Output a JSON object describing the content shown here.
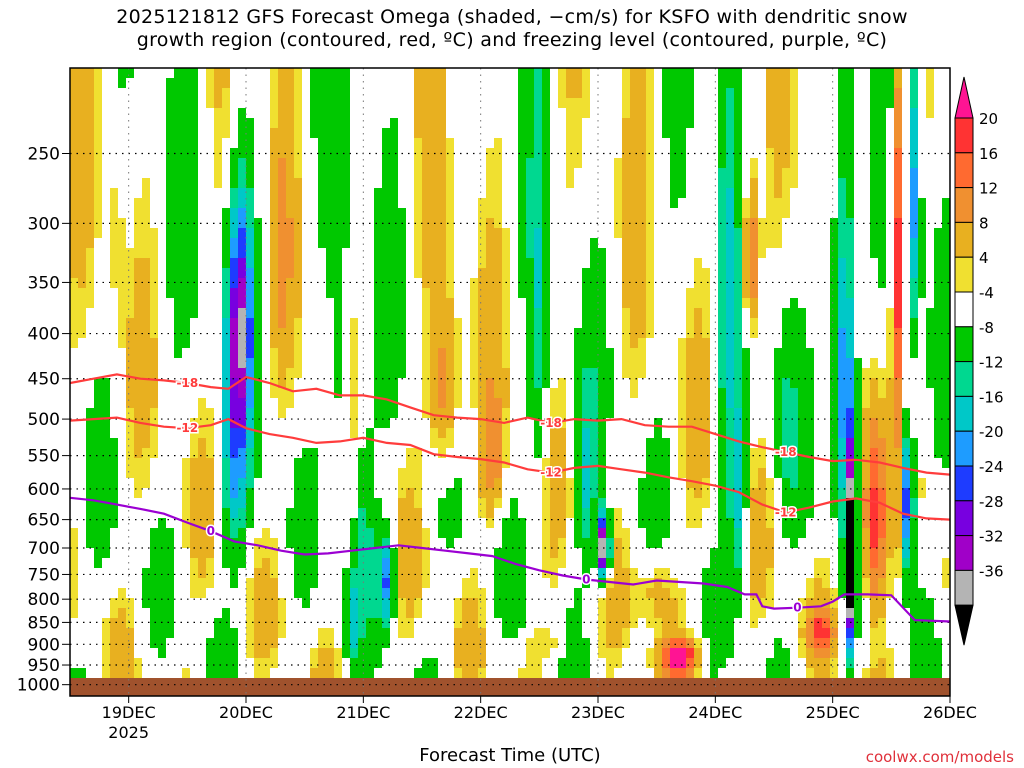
{
  "title_lines": [
    "2025121812 GFS Forecast Omega (shaded, −cm/s) for KSFO with dendritic snow",
    "growth region (contoured, red, ºC) and freezing level (contoured, purple, ºC)"
  ],
  "credit": "coolwx.com/models",
  "chart_data": {
    "type": "heatmap",
    "title": "2025121812 GFS Forecast Omega (shaded, −cm/s) for KSFO with dendritic snow growth region (contoured, red, ºC) and freezing level (contoured, purple, ºC)",
    "xlabel": "Forecast Time (UTC)",
    "ylabel": "",
    "x_ticks": [
      {
        "value": 19.0,
        "label": "19DEC",
        "sublabel": "2025"
      },
      {
        "value": 20.0,
        "label": "20DEC"
      },
      {
        "value": 21.0,
        "label": "21DEC"
      },
      {
        "value": 22.0,
        "label": "22DEC"
      },
      {
        "value": 23.0,
        "label": "23DEC"
      },
      {
        "value": 24.0,
        "label": "24DEC"
      },
      {
        "value": 25.0,
        "label": "25DEC"
      },
      {
        "value": 26.0,
        "label": "26DEC"
      }
    ],
    "xlim": [
      18.5,
      26.0
    ],
    "y_ticks": [
      250,
      300,
      350,
      400,
      450,
      500,
      550,
      600,
      650,
      700,
      750,
      800,
      850,
      900,
      950,
      1000
    ],
    "ylim": [
      1030,
      200
    ],
    "y_scale": "log-pressure",
    "grid": true,
    "colorbar": {
      "labels": [
        20,
        16,
        12,
        8,
        4,
        -4,
        -8,
        -12,
        -16,
        -20,
        -24,
        -28,
        -32,
        -36
      ],
      "colors": [
        "#ff1493",
        "#ff3333",
        "#ff6a30",
        "#f09030",
        "#e8b020",
        "#f0e030",
        "#ffffff",
        "#00c800",
        "#00d890",
        "#00c8c8",
        "#1e9cff",
        "#1e3cff",
        "#7800e0",
        "#a000c8",
        "#b4b4b4",
        "#000000"
      ]
    },
    "contours": [
      {
        "name": "-18",
        "color": "#ff3c3c",
        "label": "-18",
        "x": [
          18.5,
          18.7,
          18.9,
          19.1,
          19.3,
          19.5,
          19.7,
          19.85,
          20.0,
          20.2,
          20.4,
          20.6,
          20.8,
          21.0,
          21.2,
          21.4,
          21.6,
          21.8,
          22.0,
          22.2,
          22.4,
          22.6,
          22.8,
          23.0,
          23.2,
          23.4,
          23.6,
          23.8,
          24.0,
          24.2,
          24.4,
          24.6,
          24.8,
          25.0,
          25.2,
          25.4,
          25.6,
          25.8,
          26.0
        ],
        "y": [
          455,
          450,
          445,
          450,
          452,
          455,
          460,
          462,
          448,
          455,
          465,
          462,
          470,
          470,
          475,
          485,
          495,
          498,
          500,
          505,
          498,
          505,
          500,
          502,
          500,
          508,
          510,
          510,
          520,
          530,
          538,
          545,
          552,
          558,
          556,
          560,
          568,
          575,
          578
        ]
      },
      {
        "name": "-12",
        "color": "#ff3c3c",
        "label": "-12",
        "x": [
          18.5,
          18.7,
          18.9,
          19.1,
          19.3,
          19.5,
          19.7,
          19.85,
          20.0,
          20.2,
          20.4,
          20.6,
          20.8,
          21.0,
          21.2,
          21.4,
          21.6,
          21.8,
          22.0,
          22.2,
          22.4,
          22.6,
          22.8,
          23.0,
          23.2,
          23.4,
          23.6,
          23.8,
          24.0,
          24.2,
          24.4,
          24.6,
          24.8,
          25.0,
          25.2,
          25.4,
          25.6,
          25.8,
          26.0
        ],
        "y": [
          502,
          500,
          498,
          505,
          510,
          512,
          508,
          500,
          512,
          520,
          525,
          532,
          530,
          525,
          532,
          535,
          548,
          552,
          555,
          560,
          570,
          575,
          568,
          565,
          570,
          575,
          582,
          588,
          595,
          605,
          625,
          638,
          630,
          620,
          615,
          622,
          640,
          648,
          650
        ]
      },
      {
        "name": "0",
        "color": "#9b00d2",
        "label": "0",
        "x": [
          18.5,
          18.7,
          18.9,
          19.1,
          19.3,
          19.5,
          19.7,
          19.9,
          20.1,
          20.3,
          20.5,
          20.7,
          20.9,
          21.1,
          21.3,
          21.5,
          21.7,
          21.9,
          22.1,
          22.3,
          22.5,
          22.7,
          22.9,
          23.1,
          23.3,
          23.5,
          23.7,
          23.9,
          24.1,
          24.25,
          24.35,
          24.4,
          24.5,
          24.7,
          24.9,
          25.0,
          25.1,
          25.3,
          25.5,
          25.7,
          26.0
        ],
        "y": [
          614,
          618,
          625,
          632,
          640,
          655,
          670,
          688,
          695,
          705,
          712,
          710,
          705,
          700,
          695,
          700,
          705,
          710,
          715,
          730,
          742,
          752,
          760,
          765,
          770,
          762,
          765,
          768,
          775,
          790,
          790,
          815,
          820,
          818,
          815,
          805,
          790,
          790,
          792,
          845,
          848
        ]
      }
    ]
  }
}
